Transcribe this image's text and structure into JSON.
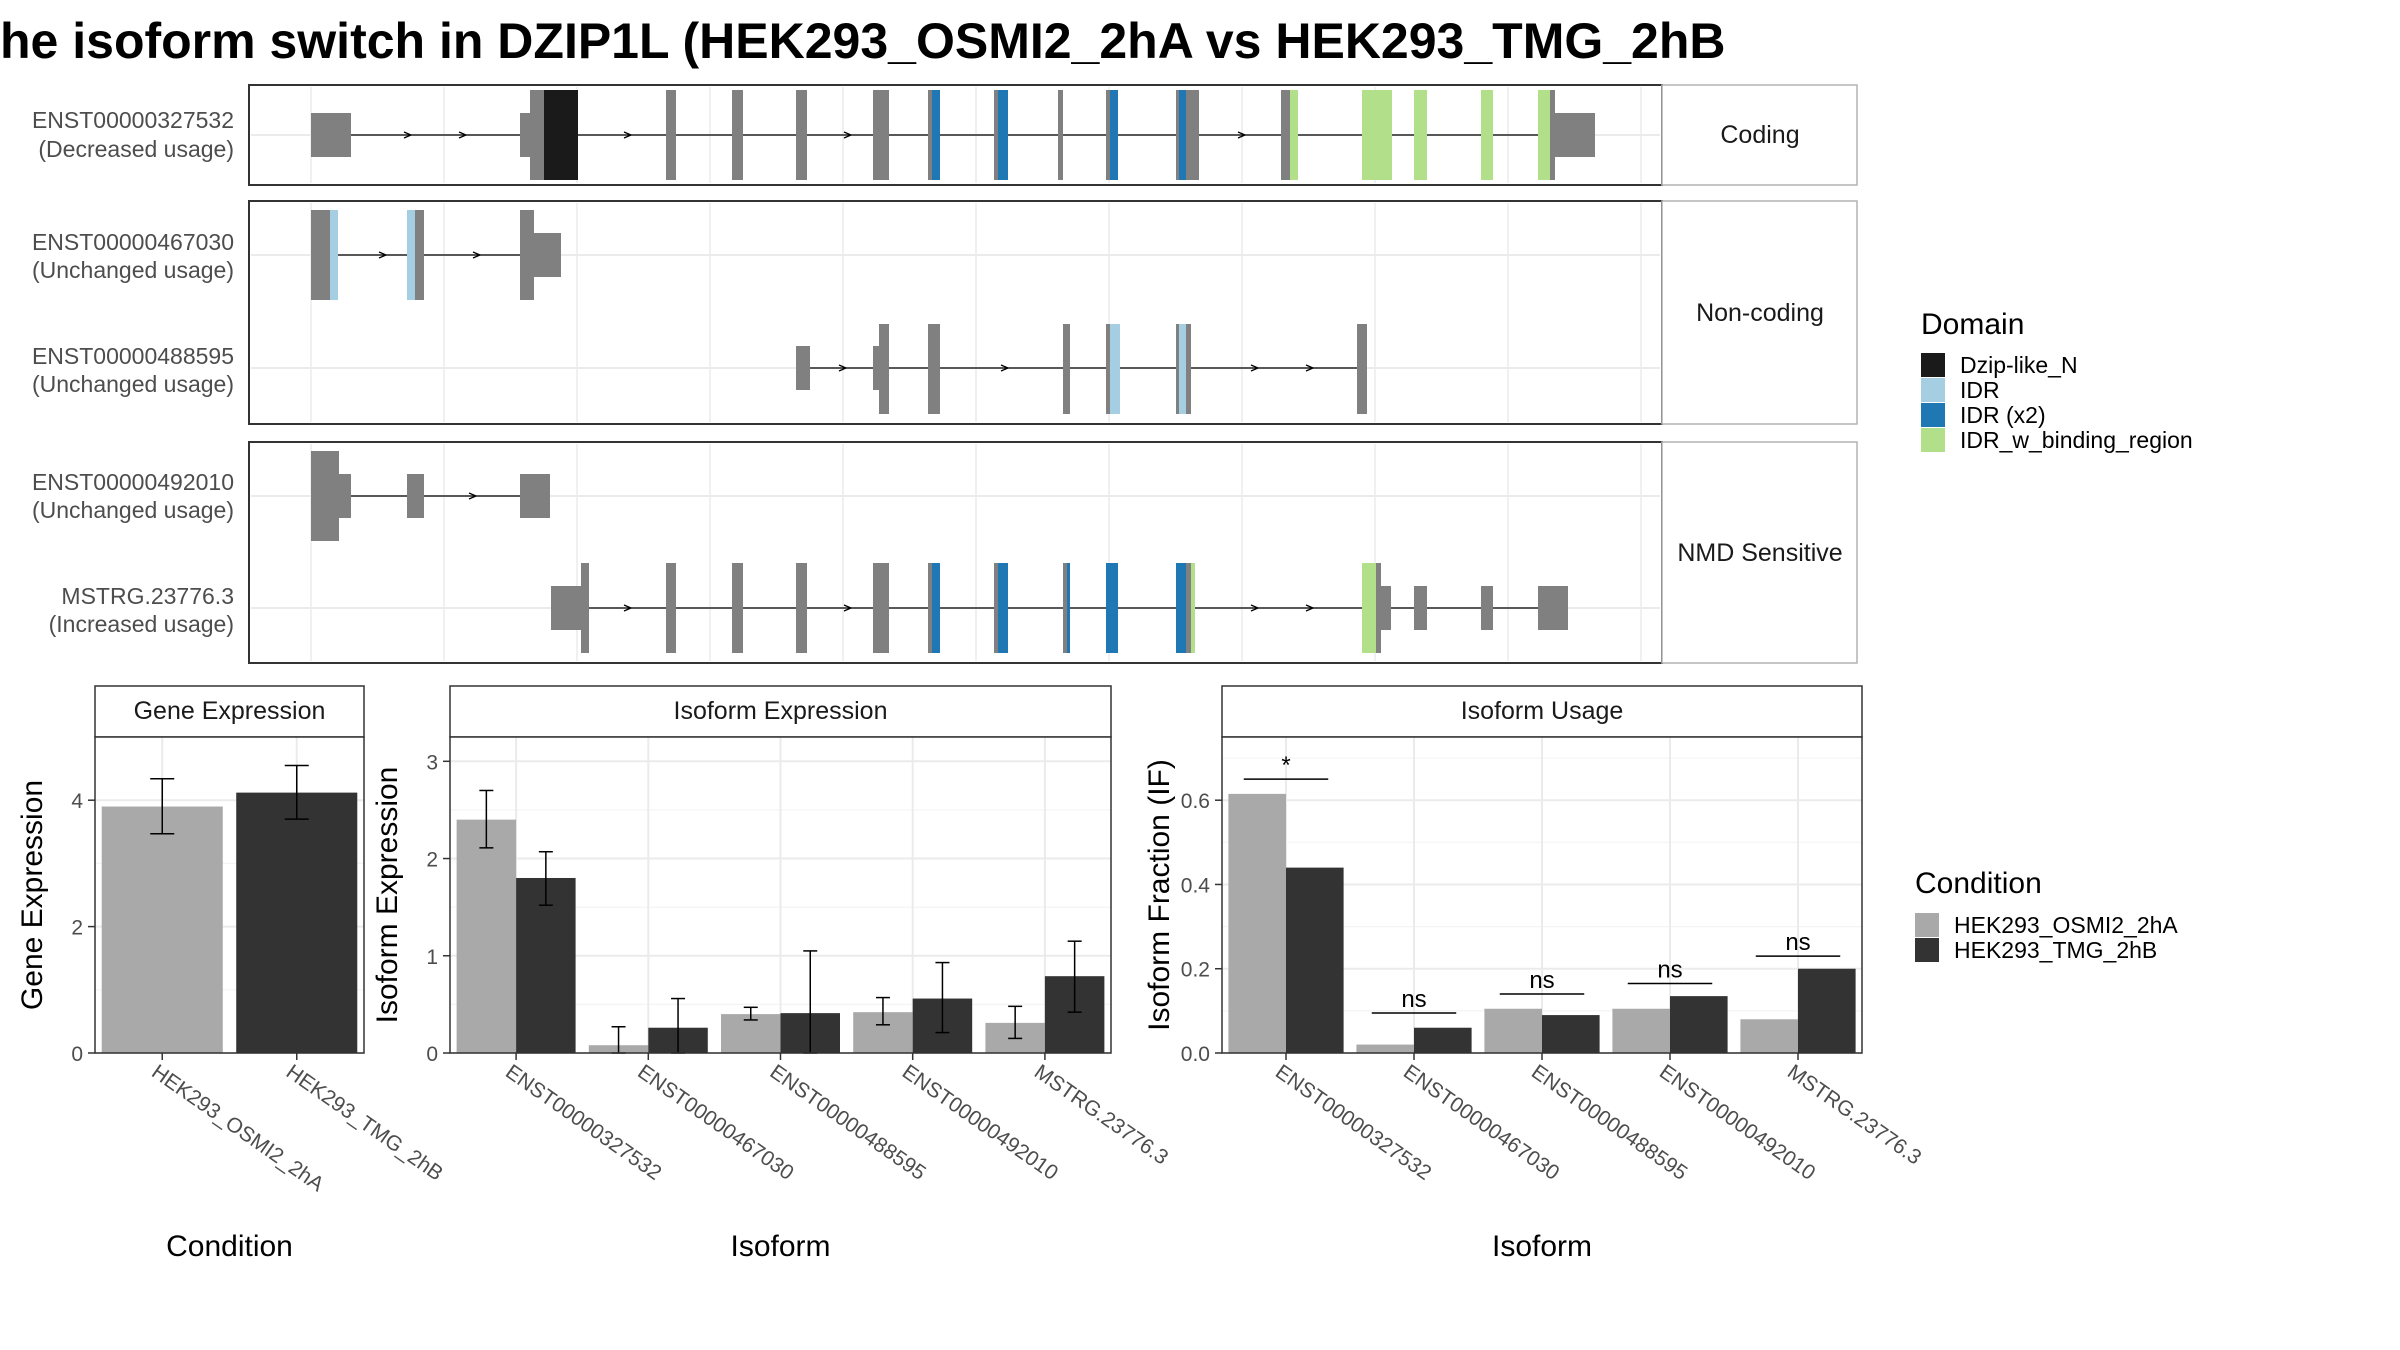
{
  "title": "he isoform switch in DZIP1L (HEK293_OSMI2_2hA vs HEK293_TMG_2hB",
  "colors": {
    "exon": "#808080",
    "Dzip-like_N": "#1a1a1a",
    "IDR": "#a6cee3",
    "IDR (x2)": "#1f78b4",
    "IDR_w_binding_region": "#b2df8a",
    "cond1": "#a9a9a9",
    "cond2": "#333333"
  },
  "structure": {
    "groups": [
      {
        "label": "Coding",
        "isoforms": [
          {
            "id": "ENST00000327532",
            "usage": "(Decreased usage)"
          }
        ]
      },
      {
        "label": "Non-coding",
        "isoforms": [
          {
            "id": "ENST00000467030",
            "usage": "(Unchanged usage)"
          },
          {
            "id": "ENST00000488595",
            "usage": "(Unchanged usage)"
          }
        ]
      },
      {
        "label": "NMD Sensitive",
        "isoforms": [
          {
            "id": "ENST00000492010",
            "usage": "(Unchanged usage)"
          },
          {
            "id": "MSTRG.23776.3",
            "usage": "(Increased usage)"
          }
        ]
      }
    ]
  },
  "legend_domain": {
    "title": "Domain",
    "items": [
      "Dzip-like_N",
      "IDR",
      "IDR (x2)",
      "IDR_w_binding_region"
    ]
  },
  "legend_condition": {
    "title": "Condition",
    "items": [
      "HEK293_OSMI2_2hA",
      "HEK293_TMG_2hB"
    ]
  },
  "chart_data": [
    {
      "type": "bar",
      "title": "Gene Expression",
      "xlabel": "Condition",
      "ylabel": "Gene Expression",
      "categories": [
        "HEK293_OSMI2_2hA",
        "HEK293_TMG_2hB"
      ],
      "values": [
        3.9,
        4.12
      ],
      "err_low": [
        3.47,
        3.7
      ],
      "err_high": [
        4.34,
        4.55
      ],
      "ylim": [
        0,
        5.0
      ],
      "yticks": [
        0,
        2,
        4
      ],
      "grid": true
    },
    {
      "type": "bar",
      "title": "Isoform Expression",
      "xlabel": "Isoform",
      "ylabel": "Isoform Expression",
      "categories": [
        "ENST00000327532",
        "ENST00000467030",
        "ENST00000488595",
        "ENST00000492010",
        "MSTRG.23776.3"
      ],
      "series": [
        {
          "name": "HEK293_OSMI2_2hA",
          "values": [
            2.4,
            0.08,
            0.4,
            0.42,
            0.31
          ],
          "err_low": [
            2.11,
            0.0,
            0.34,
            0.29,
            0.15
          ],
          "err_high": [
            2.7,
            0.27,
            0.47,
            0.57,
            0.48
          ]
        },
        {
          "name": "HEK293_TMG_2hB",
          "values": [
            1.8,
            0.26,
            0.41,
            0.56,
            0.79
          ],
          "err_low": [
            1.52,
            0.0,
            0.0,
            0.21,
            0.42
          ],
          "err_high": [
            2.07,
            0.56,
            1.05,
            0.93,
            1.15
          ]
        }
      ],
      "ylim": [
        0,
        3.25
      ],
      "yticks": [
        0,
        1,
        2,
        3
      ],
      "grid": true
    },
    {
      "type": "bar",
      "title": "Isoform Usage",
      "xlabel": "Isoform",
      "ylabel": "Isoform Fraction (IF)",
      "categories": [
        "ENST00000327532",
        "ENST00000467030",
        "ENST00000488595",
        "ENST00000492010",
        "MSTRG.23776.3"
      ],
      "series": [
        {
          "name": "HEK293_OSMI2_2hA",
          "values": [
            0.615,
            0.02,
            0.105,
            0.105,
            0.08
          ]
        },
        {
          "name": "HEK293_TMG_2hB",
          "values": [
            0.44,
            0.06,
            0.09,
            0.135,
            0.2
          ]
        }
      ],
      "significance": [
        {
          "label": "*",
          "y": 0.65
        },
        {
          "label": "ns",
          "y": 0.095
        },
        {
          "label": "ns",
          "y": 0.14
        },
        {
          "label": "ns",
          "y": 0.165
        },
        {
          "label": "ns",
          "y": 0.23
        }
      ],
      "ylim": [
        0,
        0.75
      ],
      "yticks": [
        0.0,
        0.2,
        0.4,
        0.6
      ],
      "ytick_labels": [
        "0.0",
        "0.2",
        "0.4",
        "0.6"
      ],
      "grid": true
    }
  ]
}
